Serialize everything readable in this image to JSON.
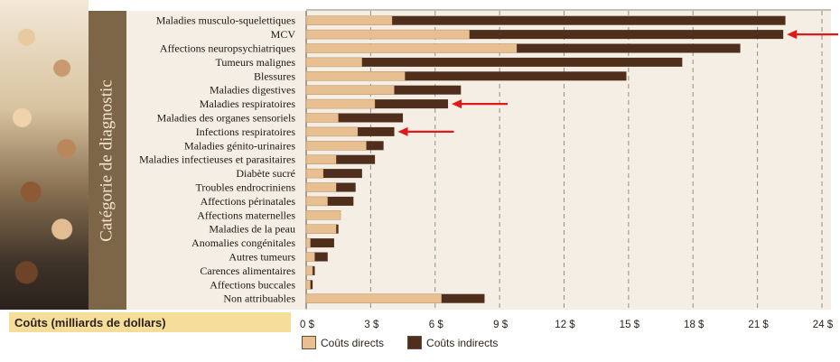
{
  "page": {
    "y_axis_label": "Catégorie de diagnostic",
    "x_axis_title": "Coûts (milliards de dollars)"
  },
  "colors": {
    "direct": "#e7bf91",
    "indirect": "#4f2f1c",
    "arrow": "#e0191a",
    "grid": "#9b8d7b",
    "axis_label_band": "#7d6547",
    "x_title_band": "#f6dd9a"
  },
  "legend": [
    {
      "label": "Coûts directs",
      "color": "#e7bf91"
    },
    {
      "label": "Coûts indirects",
      "color": "#4f2f1c"
    }
  ],
  "chart_data": {
    "type": "bar",
    "orientation": "horizontal",
    "stacked": true,
    "categories": [
      "Maladies musculo-squelettiques",
      "MCV",
      "Affections neuropsychiatriques",
      "Tumeurs malignes",
      "Blessures",
      "Maladies digestives",
      "Maladies respiratoires",
      "Maladies des organes sensoriels",
      "Infections respiratoires",
      "Maladies génito-urinaires",
      "Maladies infectieuses et parasitaires",
      "Diabète sucré",
      "Troubles endrocriniens",
      "Affections périnatales",
      "Affections maternelles",
      "Maladies de la peau",
      "Anomalies congénitales",
      "Autres tumeurs",
      "Carences alimentaires",
      "Affections buccales",
      "Non attribuables"
    ],
    "series": [
      {
        "name": "Coûts directs",
        "values": [
          4.0,
          7.6,
          9.8,
          2.6,
          4.6,
          4.1,
          3.2,
          1.5,
          2.4,
          2.8,
          1.4,
          0.8,
          1.4,
          1.0,
          1.6,
          1.4,
          0.2,
          0.4,
          0.3,
          0.2,
          6.3
        ]
      },
      {
        "name": "Coûts indirects",
        "values": [
          18.3,
          14.6,
          10.4,
          14.9,
          10.3,
          3.1,
          3.4,
          3.0,
          1.7,
          0.8,
          1.8,
          1.8,
          0.9,
          1.2,
          0.0,
          0.1,
          1.1,
          0.6,
          0.1,
          0.1,
          2.0
        ]
      }
    ],
    "xlabel": "Coûts (milliards de dollars)",
    "ylabel": "Catégorie de diagnostic",
    "xlim": [
      0,
      24
    ],
    "xticks": [
      0,
      3,
      6,
      9,
      12,
      15,
      18,
      21,
      24
    ],
    "xtick_labels": [
      "0 $",
      "3 $",
      "6 $",
      "9 $",
      "12 $",
      "15 $",
      "18 $",
      "21 $",
      "24 $"
    ],
    "grid": "vertical dashed",
    "legend_position": "bottom",
    "highlighted_categories": [
      "MCV",
      "Maladies respiratoires",
      "Infections respiratoires"
    ]
  }
}
